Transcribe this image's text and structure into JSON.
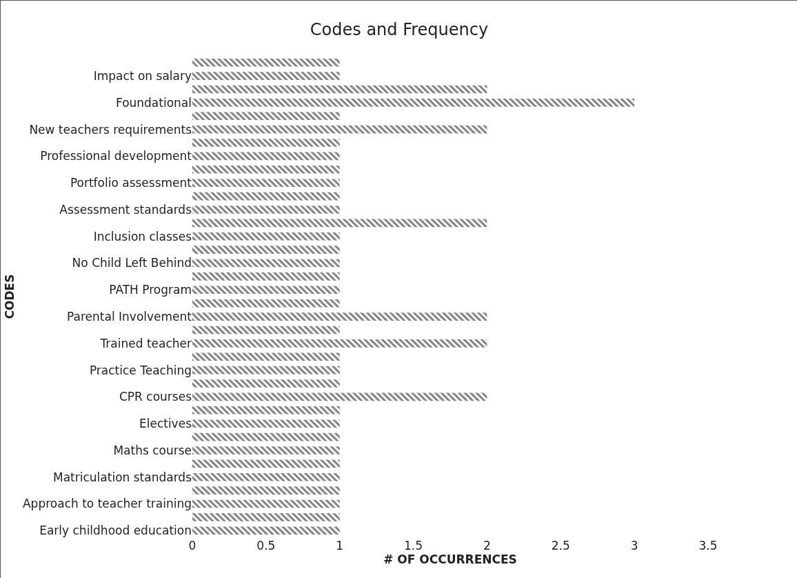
{
  "chart_data": {
    "type": "bar",
    "orientation": "horizontal",
    "title": "Codes and Frequency",
    "xlabel": "# OF OCCURRENCES",
    "ylabel": "CODES",
    "categories": [
      null,
      "Impact on salary",
      null,
      "Foundational",
      null,
      "New teachers requirements",
      null,
      "Professional development",
      null,
      "Portfolio assessment",
      null,
      "Assessment standards",
      null,
      "Inclusion classes",
      null,
      "No Child Left Behind",
      null,
      "PATH Program",
      null,
      "Parental Involvement",
      null,
      "Trained teacher",
      null,
      "Practice Teaching",
      null,
      "CPR courses",
      null,
      "Electives",
      null,
      "Maths course",
      null,
      "Matriculation standards",
      null,
      "Approach to teacher training",
      null,
      "Early childhood education"
    ],
    "values": [
      1,
      1,
      2,
      3,
      1,
      2,
      1,
      1,
      1,
      1,
      1,
      1,
      2,
      1,
      1,
      1,
      1,
      1,
      1,
      2,
      1,
      2,
      1,
      1,
      1,
      2,
      1,
      1,
      1,
      1,
      1,
      1,
      1,
      1,
      1,
      1
    ],
    "color": "#7f7f7f",
    "xlim": [
      0,
      3.5
    ],
    "xticks": [
      0,
      0.5,
      1,
      1.5,
      2,
      2.5,
      3,
      3.5
    ],
    "grid": false,
    "legend": false
  }
}
